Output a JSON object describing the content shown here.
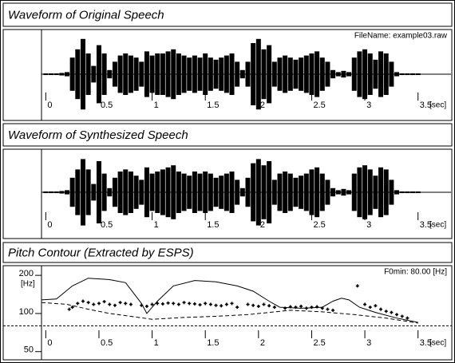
{
  "chart_data": [
    {
      "type": "waveform",
      "title": "Waveform of Original Speech",
      "annotation": "FileName: example03.raw",
      "x_label": "[sec]",
      "x": [
        0,
        0.05,
        0.1,
        0.15,
        0.2,
        0.25,
        0.3,
        0.35,
        0.4,
        0.45,
        0.5,
        0.55,
        0.6,
        0.65,
        0.7,
        0.75,
        0.8,
        0.85,
        0.9,
        0.95,
        1,
        1.05,
        1.1,
        1.15,
        1.2,
        1.25,
        1.3,
        1.35,
        1.4,
        1.45,
        1.5,
        1.55,
        1.6,
        1.65,
        1.7,
        1.75,
        1.8,
        1.85,
        1.9,
        1.95,
        2,
        2.05,
        2.1,
        2.15,
        2.2,
        2.25,
        2.3,
        2.35,
        2.4,
        2.45,
        2.5,
        2.55,
        2.6,
        2.65,
        2.7,
        2.75,
        2.8,
        2.85,
        2.9,
        2.95,
        3,
        3.05,
        3.1,
        3.15,
        3.2,
        3.25,
        3.3,
        3.35,
        3.4,
        3.45,
        3.5
      ],
      "values": [
        0.02,
        0.02,
        0.02,
        0.03,
        0.05,
        0.4,
        0.6,
        0.85,
        0.5,
        0.2,
        0.7,
        0.5,
        0.1,
        0.3,
        0.45,
        0.5,
        0.45,
        0.4,
        0.3,
        0.55,
        0.45,
        0.5,
        0.5,
        0.55,
        0.6,
        0.5,
        0.45,
        0.4,
        0.45,
        0.4,
        0.5,
        0.4,
        0.35,
        0.4,
        0.45,
        0.5,
        0.3,
        0.1,
        0.3,
        0.75,
        0.85,
        0.6,
        0.7,
        0.3,
        0.4,
        0.45,
        0.4,
        0.35,
        0.4,
        0.45,
        0.5,
        0.55,
        0.4,
        0.3,
        0.1,
        0.05,
        0.08,
        0.05,
        0.4,
        0.55,
        0.6,
        0.5,
        0.35,
        0.55,
        0.5,
        0.3,
        0.05,
        0.02,
        0.02,
        0.02,
        0.02
      ],
      "color": "#000000",
      "xlim": [
        -0.04,
        3.81
      ],
      "xticks": [
        0,
        0.5,
        1,
        1.5,
        2,
        2.5,
        3,
        3.5
      ],
      "ylim": [
        -1,
        1
      ]
    },
    {
      "type": "waveform",
      "title": "Waveform of Synthesized Speech",
      "x_label": "[sec]",
      "x": [
        0,
        0.05,
        0.1,
        0.15,
        0.2,
        0.25,
        0.3,
        0.35,
        0.4,
        0.45,
        0.5,
        0.55,
        0.6,
        0.65,
        0.7,
        0.75,
        0.8,
        0.85,
        0.9,
        0.95,
        1,
        1.05,
        1.1,
        1.15,
        1.2,
        1.25,
        1.3,
        1.35,
        1.4,
        1.45,
        1.5,
        1.55,
        1.6,
        1.65,
        1.7,
        1.75,
        1.8,
        1.85,
        1.9,
        1.95,
        2,
        2.05,
        2.1,
        2.15,
        2.2,
        2.25,
        2.3,
        2.35,
        2.4,
        2.45,
        2.5,
        2.55,
        2.6,
        2.65,
        2.7,
        2.75,
        2.8,
        2.85,
        2.9,
        2.95,
        3,
        3.05,
        3.1,
        3.15,
        3.2,
        3.25,
        3.3,
        3.35,
        3.4,
        3.45,
        3.5
      ],
      "values": [
        0.02,
        0.02,
        0.02,
        0.03,
        0.05,
        0.35,
        0.55,
        0.8,
        0.55,
        0.2,
        0.75,
        0.45,
        0.1,
        0.35,
        0.5,
        0.55,
        0.5,
        0.4,
        0.3,
        0.6,
        0.45,
        0.5,
        0.55,
        0.6,
        0.65,
        0.5,
        0.45,
        0.4,
        0.5,
        0.45,
        0.5,
        0.45,
        0.35,
        0.4,
        0.45,
        0.5,
        0.3,
        0.1,
        0.35,
        0.7,
        0.8,
        0.65,
        0.75,
        0.3,
        0.45,
        0.5,
        0.45,
        0.35,
        0.4,
        0.45,
        0.55,
        0.6,
        0.45,
        0.3,
        0.1,
        0.05,
        0.08,
        0.05,
        0.45,
        0.6,
        0.65,
        0.55,
        0.4,
        0.6,
        0.55,
        0.3,
        0.05,
        0.02,
        0.02,
        0.02,
        0.02
      ],
      "color": "#000000",
      "xlim": [
        -0.04,
        3.81
      ],
      "xticks": [
        0,
        0.5,
        1,
        1.5,
        2,
        2.5,
        3,
        3.5
      ],
      "ylim": [
        -1,
        1
      ]
    },
    {
      "type": "pitch",
      "title": "Pitch Contour (Extracted by ESPS)",
      "annotation": "F0min: 80.00 [Hz]",
      "x_label": "[sec]",
      "y_label": "[Hz]",
      "f0min": 80,
      "log_y": true,
      "xlim": [
        -0.04,
        3.81
      ],
      "xticks": [
        0,
        0.5,
        1,
        1.5,
        2,
        2.5,
        3,
        3.5
      ],
      "ylim": [
        45,
        225
      ],
      "yticks": [
        50,
        100,
        200
      ],
      "series": [
        {
          "style": "points",
          "color": "#000000",
          "x": [
            0.22,
            0.25,
            0.3,
            0.35,
            0.4,
            0.45,
            0.5,
            0.55,
            0.6,
            0.65,
            0.7,
            0.75,
            0.8,
            0.9,
            0.95,
            1.0,
            1.05,
            1.1,
            1.15,
            1.2,
            1.25,
            1.3,
            1.35,
            1.4,
            1.45,
            1.5,
            1.55,
            1.6,
            1.65,
            1.7,
            1.75,
            1.8,
            1.9,
            1.95,
            2.0,
            2.05,
            2.1,
            2.15,
            2.25,
            2.3,
            2.35,
            2.4,
            2.45,
            2.5,
            2.55,
            2.6,
            2.65,
            2.7,
            2.93,
            3.0,
            3.05,
            3.1,
            3.15,
            3.2,
            3.25,
            3.3,
            3.35,
            3.4
          ],
          "values": [
            108,
            112,
            120,
            125,
            122,
            118,
            120,
            124,
            118,
            116,
            122,
            120,
            118,
            116,
            114,
            118,
            120,
            119,
            121,
            120,
            118,
            122,
            120,
            119,
            117,
            120,
            118,
            116,
            115,
            118,
            120,
            112,
            118,
            116,
            114,
            118,
            115,
            112,
            110,
            113,
            112,
            114,
            110,
            112,
            113,
            110,
            108,
            106,
            165,
            118,
            112,
            115,
            108,
            104,
            102,
            98,
            95,
            92
          ]
        },
        {
          "style": "solid",
          "color": "#000000",
          "x": [
            -0.04,
            0.1,
            0.25,
            0.4,
            0.6,
            0.75,
            0.9,
            0.95,
            1.05,
            1.2,
            1.4,
            1.6,
            1.8,
            1.95,
            2.1,
            2.2,
            2.4,
            2.6,
            2.7,
            2.78,
            2.85,
            2.95,
            3.1,
            3.3,
            3.5
          ],
          "values": [
            128,
            130,
            165,
            190,
            185,
            175,
            120,
            100,
            125,
            165,
            182,
            178,
            165,
            150,
            125,
            112,
            110,
            112,
            125,
            132,
            128,
            112,
            102,
            92,
            85
          ]
        },
        {
          "style": "dashed",
          "color": "#000000",
          "x": [
            -0.04,
            0.2,
            0.4,
            0.6,
            0.8,
            1.0,
            1.3,
            1.6,
            1.9,
            2.1,
            2.3,
            2.6,
            2.9,
            3.2,
            3.5
          ],
          "values": [
            122,
            118,
            108,
            100,
            95,
            90,
            93,
            95,
            98,
            102,
            106,
            103,
            98,
            92,
            84
          ]
        }
      ]
    }
  ]
}
